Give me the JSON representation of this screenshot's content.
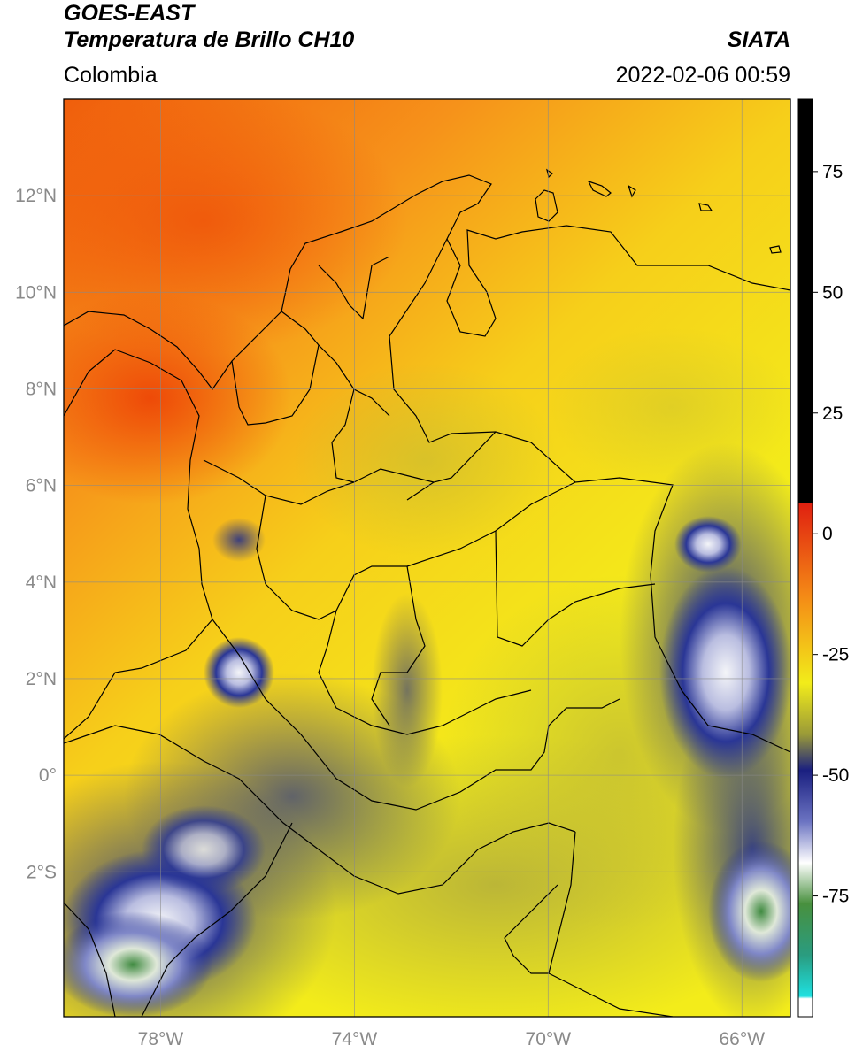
{
  "header": {
    "satellite": "GOES-EAST",
    "product": "Temperatura de Brillo CH10",
    "region": "Colombia",
    "agency": "SIATA",
    "datetime": "2022-02-06 00:59"
  },
  "map": {
    "lon_range": [
      -80,
      -65
    ],
    "lat_range": [
      -5,
      14
    ],
    "lon_ticks": [
      {
        "value": -78,
        "label": "78°W"
      },
      {
        "value": -74,
        "label": "74°W"
      },
      {
        "value": -70,
        "label": "70°W"
      },
      {
        "value": -66,
        "label": "66°W"
      }
    ],
    "lat_ticks": [
      {
        "value": 12,
        "label": "12°N"
      },
      {
        "value": 10,
        "label": "10°N"
      },
      {
        "value": 8,
        "label": "8°N"
      },
      {
        "value": 6,
        "label": "6°N"
      },
      {
        "value": 4,
        "label": "4°N"
      },
      {
        "value": 2,
        "label": "2°N"
      },
      {
        "value": 0,
        "label": "0°"
      },
      {
        "value": -2,
        "label": "2°S"
      }
    ],
    "colors": {
      "warm": "#f05a0a",
      "orange": "#f7a21a",
      "yellow": "#f3ec1a",
      "olive": "#c2bd3a",
      "navy": "#1e2a8c",
      "white": "#f2f4f8",
      "green": "#3f8a40"
    }
  },
  "colorbar": {
    "range": [
      -100,
      90
    ],
    "ticks": [
      {
        "value": 75,
        "label": "75"
      },
      {
        "value": 50,
        "label": "50"
      },
      {
        "value": 25,
        "label": "25"
      },
      {
        "value": 0,
        "label": "0"
      },
      {
        "value": -25,
        "label": "-25"
      },
      {
        "value": -50,
        "label": "-50"
      },
      {
        "value": -75,
        "label": "-75"
      }
    ]
  }
}
